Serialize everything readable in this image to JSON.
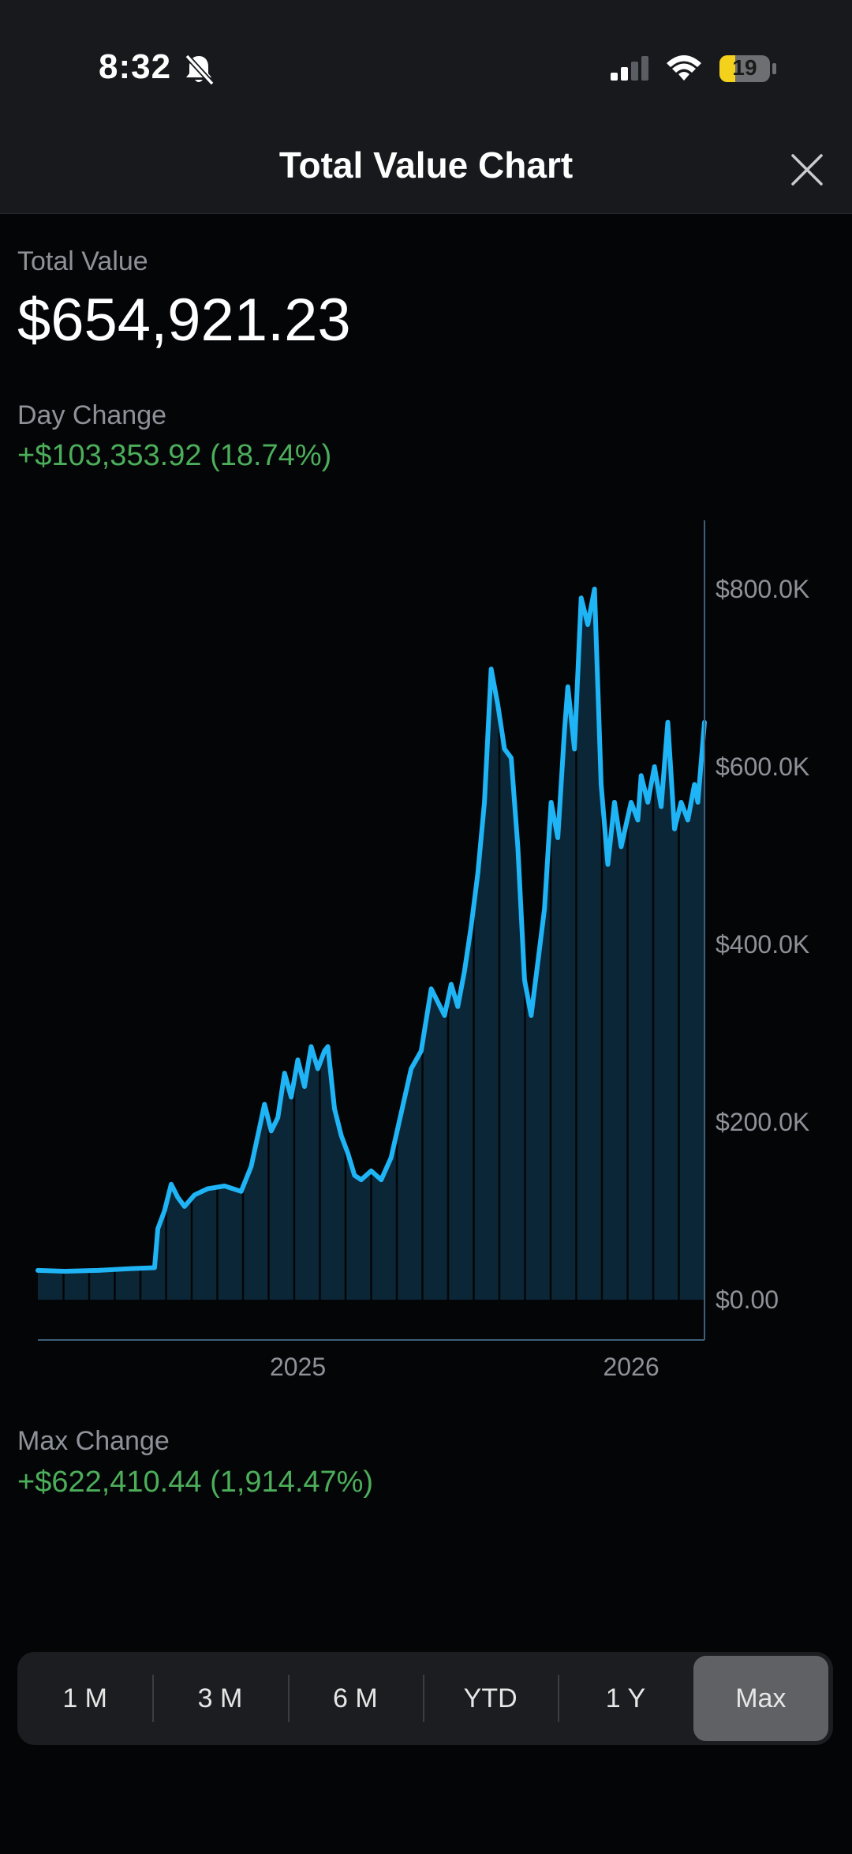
{
  "status_bar": {
    "time": "8:32",
    "battery": "19",
    "icons": [
      "bell-slash-icon",
      "cellular-signal-icon",
      "wifi-icon",
      "battery-icon"
    ]
  },
  "header": {
    "title": "Total Value Chart",
    "close_icon": "close-icon"
  },
  "summary": {
    "total_label": "Total Value",
    "total_value": "$654,921.23",
    "day_label": "Day Change",
    "day_value": "+$103,353.92 (18.74%)",
    "max_label": "Max Change",
    "max_value": "+$622,410.44 (1,914.47%)"
  },
  "colors": {
    "line": "#1fb4f5",
    "area": "#0b2636",
    "gain": "#4cae5a",
    "axis": "#3d5f7a"
  },
  "chart_data": {
    "type": "area",
    "title": "",
    "xlabel": "",
    "ylabel": "",
    "x_ticks": [
      {
        "label": "2025",
        "x": 2025.0
      },
      {
        "label": "2026",
        "x": 2026.0
      }
    ],
    "y_ticks": [
      {
        "label": "$800.0K",
        "value": 800000
      },
      {
        "label": "$600.0K",
        "value": 600000
      },
      {
        "label": "$400.0K",
        "value": 400000
      },
      {
        "label": "$200.0K",
        "value": 200000
      },
      {
        "label": "$0.00",
        "value": 0
      }
    ],
    "ylim": [
      0,
      880000
    ],
    "xlim": [
      2024.22,
      2026.22
    ],
    "grid": false,
    "series": [
      {
        "x": [
          2024.22,
          2024.3,
          2024.4,
          2024.5,
          2024.57,
          2024.58,
          2024.6,
          2024.62,
          2024.64,
          2024.66,
          2024.69,
          2024.73,
          2024.78,
          2024.83,
          2024.86,
          2024.88,
          2024.9,
          2024.92,
          2024.94,
          2024.96,
          2024.98,
          2025.0,
          2025.02,
          2025.04,
          2025.06,
          2025.08,
          2025.09,
          2025.11,
          2025.13,
          2025.15,
          2025.17,
          2025.19,
          2025.22,
          2025.25,
          2025.28,
          2025.31,
          2025.34,
          2025.37,
          2025.4,
          2025.44,
          2025.46,
          2025.48,
          2025.5,
          2025.52,
          2025.54,
          2025.56,
          2025.58,
          2025.6,
          2025.62,
          2025.64,
          2025.66,
          2025.68,
          2025.7,
          2025.72,
          2025.74,
          2025.76,
          2025.78,
          2025.8,
          2025.81,
          2025.83,
          2025.85,
          2025.87,
          2025.89,
          2025.91,
          2025.93,
          2025.95,
          2025.97,
          2026.0,
          2026.02,
          2026.03,
          2026.05,
          2026.07,
          2026.09,
          2026.11,
          2026.13,
          2026.15,
          2026.17,
          2026.19,
          2026.2,
          2026.22
        ],
        "y": [
          33000,
          32000,
          33000,
          35000,
          36000,
          80000,
          100000,
          130000,
          115000,
          105000,
          118000,
          125000,
          128000,
          122000,
          150000,
          185000,
          220000,
          190000,
          205000,
          255000,
          228000,
          270000,
          240000,
          285000,
          260000,
          280000,
          285000,
          215000,
          185000,
          165000,
          140000,
          135000,
          145000,
          135000,
          160000,
          210000,
          260000,
          280000,
          350000,
          320000,
          355000,
          330000,
          370000,
          420000,
          480000,
          560000,
          710000,
          670000,
          620000,
          610000,
          510000,
          360000,
          320000,
          380000,
          440000,
          560000,
          520000,
          640000,
          690000,
          620000,
          790000,
          760000,
          800000,
          580000,
          490000,
          560000,
          510000,
          560000,
          540000,
          590000,
          560000,
          600000,
          555000,
          650000,
          530000,
          560000,
          540000,
          580000,
          560000,
          650000
        ]
      }
    ]
  },
  "range_selector": {
    "options": [
      "1 M",
      "3 M",
      "6 M",
      "YTD",
      "1 Y",
      "Max"
    ],
    "selected": "Max"
  }
}
